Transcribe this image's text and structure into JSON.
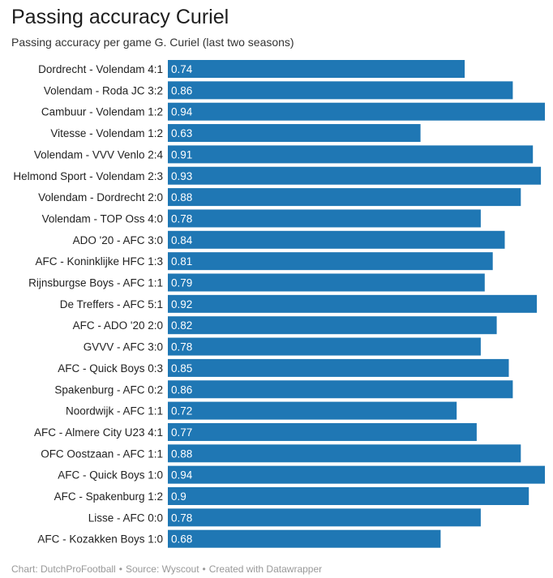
{
  "title": "Passing accuracy Curiel",
  "subtitle": "Passing accuracy per game G. Curiel (last two seasons)",
  "footer": {
    "chart": "Chart: DutchProFootball",
    "source": "Source: Wyscout",
    "created": "Created with Datawrapper",
    "separator": "•"
  },
  "colors": {
    "bar": "#1f77b4",
    "value_text": "#ffffff",
    "label_text": "#222222"
  },
  "chart_data": {
    "type": "bar",
    "orientation": "horizontal",
    "title": "Passing accuracy Curiel",
    "subtitle": "Passing accuracy per game G. Curiel (last two seasons)",
    "xlim": [
      0,
      0.94
    ],
    "grid": false,
    "legend": "none",
    "categories": [
      "Dordrecht - Volendam 4:1",
      "Volendam - Roda JC 3:2",
      "Cambuur - Volendam 1:2",
      "Vitesse - Volendam 1:2",
      "Volendam - VVV Venlo 2:4",
      "Helmond Sport - Volendam 2:3",
      "Volendam - Dordrecht 2:0",
      "Volendam - TOP Oss 4:0",
      "ADO '20 - AFC 3:0",
      "AFC - Koninklijke HFC 1:3",
      "Rijnsburgse Boys - AFC 1:1",
      "De Treffers - AFC 5:1",
      "AFC - ADO '20 2:0",
      "GVVV - AFC 3:0",
      "AFC - Quick Boys 0:3",
      "Spakenburg - AFC 0:2",
      "Noordwijk - AFC 1:1",
      "AFC - Almere City U23 4:1",
      "OFC Oostzaan - AFC 1:1",
      "AFC - Quick Boys 1:0",
      "AFC - Spakenburg 1:2",
      "Lisse - AFC 0:0",
      "AFC - Kozakken Boys 1:0"
    ],
    "values": [
      0.74,
      0.86,
      0.94,
      0.63,
      0.91,
      0.93,
      0.88,
      0.78,
      0.84,
      0.81,
      0.79,
      0.92,
      0.82,
      0.78,
      0.85,
      0.86,
      0.72,
      0.77,
      0.88,
      0.94,
      0.9,
      0.78,
      0.68
    ],
    "value_labels": [
      "0.74",
      "0.86",
      "0.94",
      "0.63",
      "0.91",
      "0.93",
      "0.88",
      "0.78",
      "0.84",
      "0.81",
      "0.79",
      "0.92",
      "0.82",
      "0.78",
      "0.85",
      "0.86",
      "0.72",
      "0.77",
      "0.88",
      "0.94",
      "0.9",
      "0.78",
      "0.68"
    ]
  }
}
